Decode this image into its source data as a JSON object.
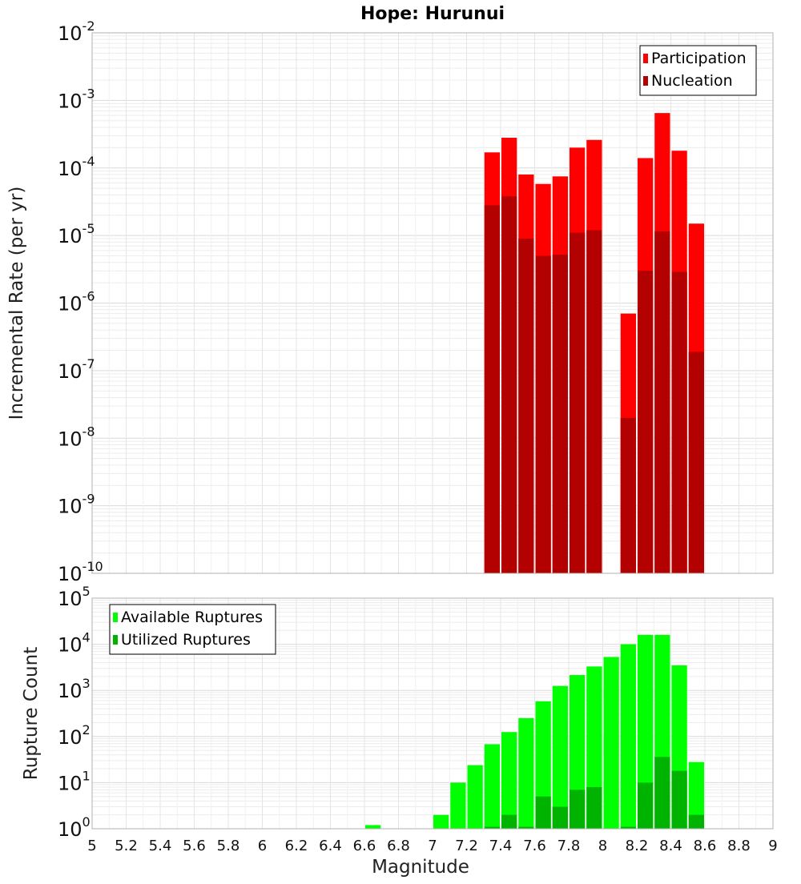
{
  "chart_data": [
    {
      "type": "bar",
      "title": "Hope: Hurunui",
      "ylabel": "Incremental Rate (per yr)",
      "yscale": "log",
      "ylim": [
        1e-10,
        0.01
      ],
      "xlim": [
        5,
        9
      ],
      "grid": true,
      "legend_position": "top-right",
      "bin_width": 0.1,
      "series": [
        {
          "name": "Participation",
          "color": "#ff0000",
          "x": [
            7.35,
            7.45,
            7.55,
            7.65,
            7.75,
            7.85,
            7.95,
            8.15,
            8.25,
            8.35,
            8.45,
            8.55
          ],
          "values": [
            0.00017,
            0.00028,
            8e-05,
            5.8e-05,
            7.5e-05,
            0.0002,
            0.00026,
            7e-07,
            0.00014,
            0.00065,
            0.00018,
            1.5e-05
          ]
        },
        {
          "name": "Nucleation",
          "color": "#b30000",
          "x": [
            7.35,
            7.45,
            7.55,
            7.65,
            7.75,
            7.85,
            7.95,
            8.15,
            8.25,
            8.35,
            8.45,
            8.55
          ],
          "values": [
            2.8e-05,
            3.8e-05,
            9e-06,
            5e-06,
            5.2e-06,
            1.1e-05,
            1.2e-05,
            2e-08,
            3e-06,
            1.15e-05,
            2.9e-06,
            1.9e-07
          ]
        }
      ]
    },
    {
      "type": "bar",
      "xlabel": "Magnitude",
      "ylabel": "Rupture Count",
      "yscale": "log",
      "ylim": [
        1,
        100000.0
      ],
      "xlim": [
        5,
        9
      ],
      "xticks": [
        "5",
        "5.2",
        "5.4",
        "5.6",
        "5.8",
        "6",
        "6.2",
        "6.4",
        "6.6",
        "6.8",
        "7",
        "7.2",
        "7.4",
        "7.6",
        "7.8",
        "8",
        "8.2",
        "8.4",
        "8.6",
        "8.8",
        "9"
      ],
      "grid": true,
      "legend_position": "top-left",
      "bin_width": 0.1,
      "series": [
        {
          "name": "Available Ruptures",
          "color": "#00ff00",
          "x": [
            6.65,
            7.05,
            7.15,
            7.25,
            7.35,
            7.45,
            7.55,
            7.65,
            7.75,
            7.85,
            7.95,
            8.05,
            8.15,
            8.25,
            8.35,
            8.45,
            8.55
          ],
          "values": [
            1.2,
            2,
            10,
            24,
            68,
            125,
            250,
            580,
            1250,
            2150,
            3300,
            5300,
            10000,
            16000,
            16000,
            3500,
            28
          ]
        },
        {
          "name": "Utilized Ruptures",
          "color": "#00b300",
          "x": [
            7.35,
            7.45,
            7.55,
            7.65,
            7.75,
            7.85,
            7.95,
            8.15,
            8.25,
            8.35,
            8.45,
            8.55
          ],
          "values": [
            1.1,
            2,
            1.1,
            5,
            3,
            7,
            8,
            1.1,
            10,
            36,
            18,
            2
          ]
        }
      ]
    }
  ]
}
